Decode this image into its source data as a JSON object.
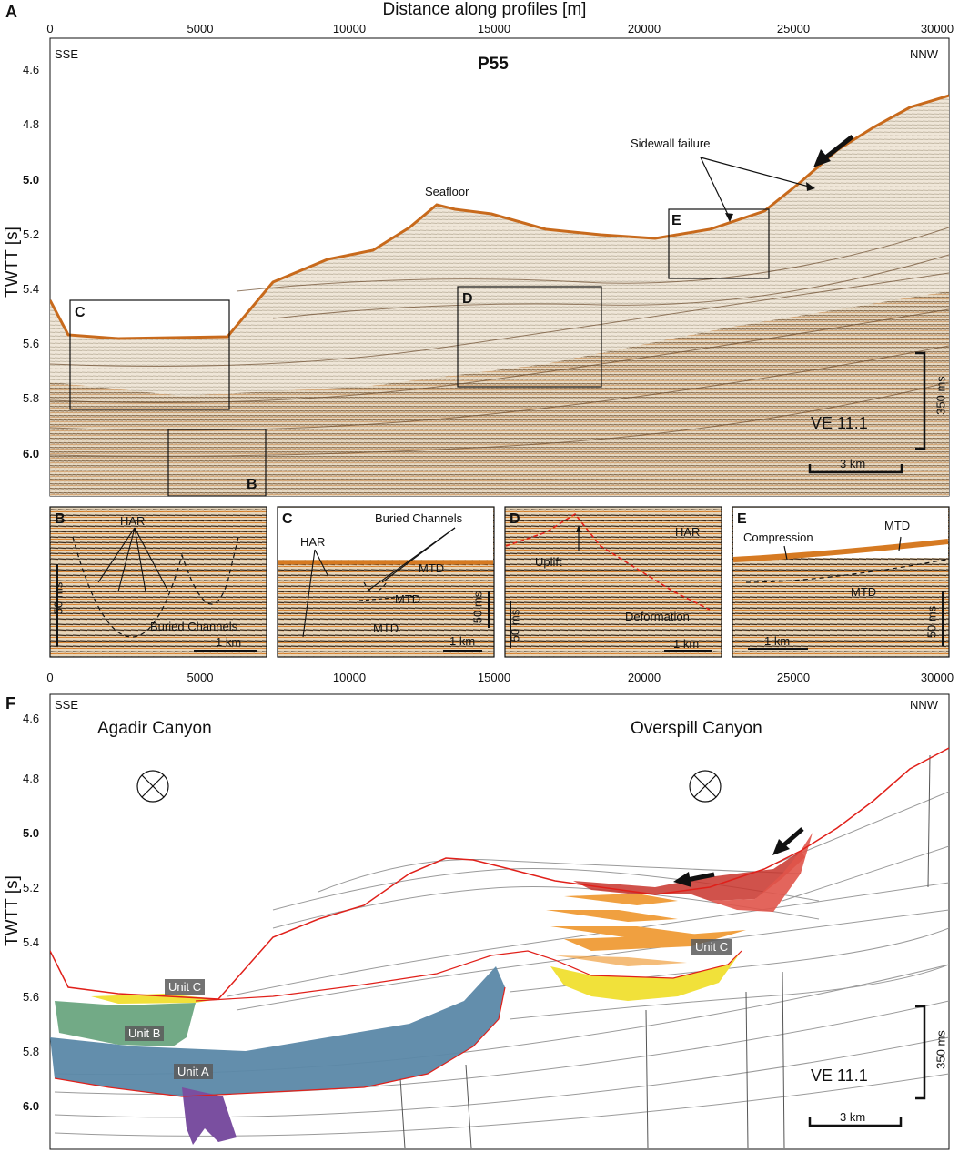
{
  "figure": {
    "panel_a_letter": "A",
    "panel_f_letter": "F",
    "x_axis_title": "Distance along profiles [m]",
    "y_axis_title": "TWTT [s]",
    "x_ticks": [
      "0",
      "5000",
      "10000",
      "15000",
      "20000",
      "25000",
      "30000"
    ],
    "y_ticks": [
      "4.6",
      "4.8",
      "5.0",
      "5.2",
      "5.4",
      "5.6",
      "5.8",
      "6.0"
    ]
  },
  "panel_a": {
    "profile": "P55",
    "left_direction": "SSE",
    "right_direction": "NNW",
    "seafloor_label": "Seafloor",
    "sidewall_label": "Sidewall failure",
    "box_labels": [
      "C",
      "D",
      "E",
      "B"
    ],
    "vertical_exaggeration": "VE 11.1",
    "time_scale": "350 ms",
    "distance_scale": "3 km"
  },
  "insets": {
    "b": {
      "letter": "B",
      "labels": [
        "HAR",
        "Buried Channels"
      ],
      "time_scale": "50 ms",
      "distance_scale": "1 km"
    },
    "c": {
      "letter": "C",
      "labels": [
        "HAR",
        "Buried Channels",
        "MTD",
        "MTD",
        "MTD"
      ],
      "time_scale": "50 ms",
      "distance_scale": "1 km"
    },
    "d": {
      "letter": "D",
      "labels": [
        "HAR",
        "Uplift",
        "Deformation"
      ],
      "time_scale": "50 ms",
      "distance_scale": "1 km"
    },
    "e": {
      "letter": "E",
      "labels": [
        "Compression",
        "MTD",
        "MTD"
      ],
      "time_scale": "50 ms",
      "distance_scale": "1 km"
    }
  },
  "panel_f": {
    "left_direction": "SSE",
    "right_direction": "NNW",
    "canyon_left": "Agadir Canyon",
    "canyon_right": "Overspill Canyon",
    "units": [
      "Unit A",
      "Unit B",
      "Unit C",
      "Unit C"
    ],
    "vertical_exaggeration": "VE 11.1",
    "time_scale": "350 ms",
    "distance_scale": "3 km"
  },
  "colors": {
    "seismic_amber": "#d2691e",
    "seafloor_red": "#e0201a",
    "unit_a_blue": "#5b88a8",
    "unit_b_green": "#6aa57f",
    "unit_c_yellow": "#f1e13a",
    "unit_c_orange": "#f0a040",
    "slide_red": "#c8342c"
  }
}
